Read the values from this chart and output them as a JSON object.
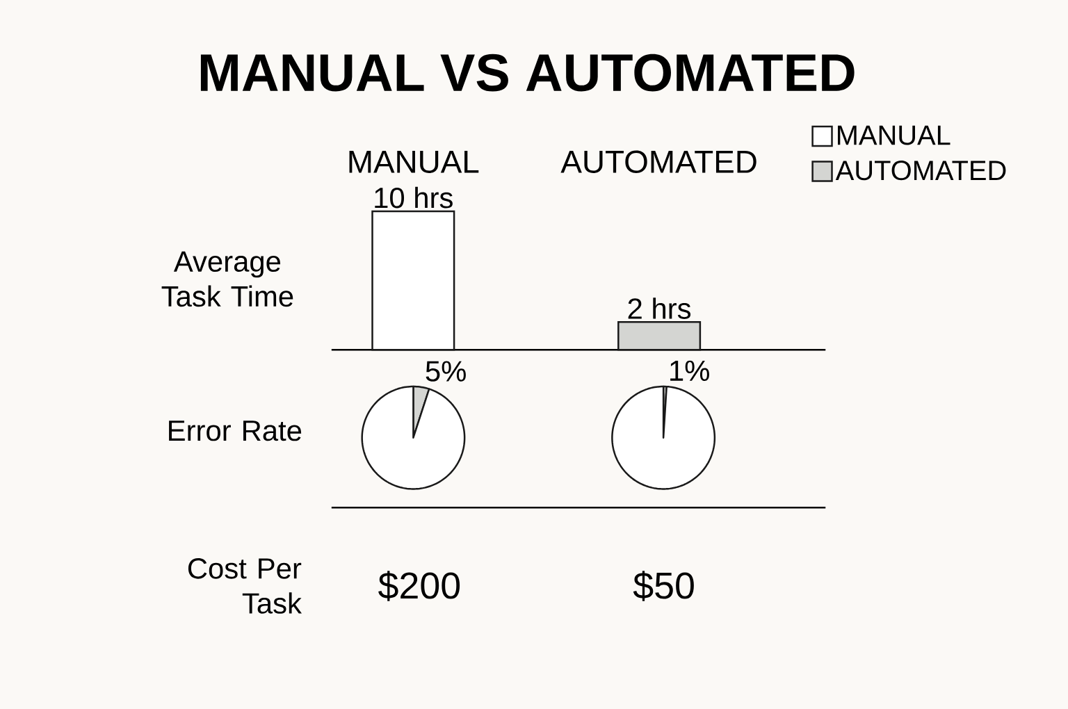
{
  "chart_data": [
    {
      "type": "bar",
      "title": "MANUAL VS AUTOMATED",
      "ylabel": "Average Task Time",
      "categories": [
        "MANUAL",
        "AUTOMATED"
      ],
      "legend": "top right",
      "series": [
        {
          "name": "MANUAL",
          "color": "#ffffff",
          "values": [
            10,
            null
          ],
          "value_labels": [
            "10 hrs",
            null
          ]
        },
        {
          "name": "AUTOMATED",
          "color": "#d4d5d2",
          "values": [
            null,
            2
          ],
          "value_labels": [
            null,
            "2 hrs"
          ]
        }
      ]
    },
    {
      "type": "pie",
      "title": "Error Rate",
      "categories": [
        null,
        null
      ],
      "values": [
        5,
        95
      ],
      "colors": [
        "#d4d5d2",
        "#ffffff"
      ],
      "value_labels": [
        "5%",
        null
      ]
    },
    {
      "type": "pie",
      "categories": [
        null,
        null
      ],
      "values": [
        1,
        99
      ],
      "colors": [
        "#d4d5d2",
        "#ffffff"
      ],
      "value_labels": [
        "1%",
        null
      ]
    },
    {
      "type": "other",
      "title": "Cost Per Task",
      "annotations": [
        "$200",
        "$50"
      ]
    }
  ]
}
